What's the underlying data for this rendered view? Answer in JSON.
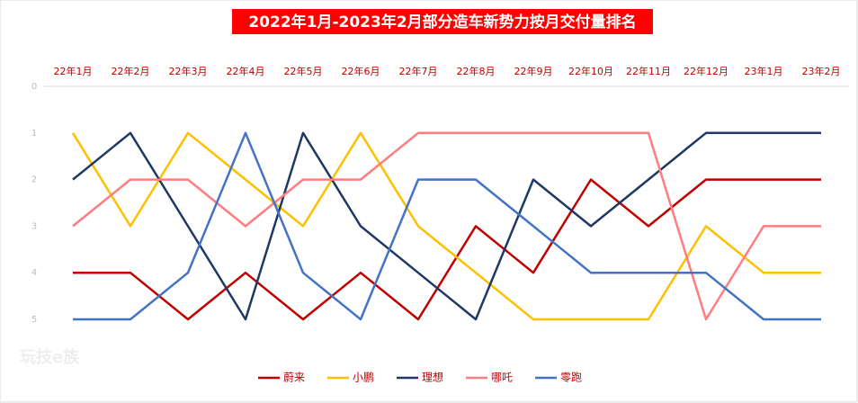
{
  "chart_data": {
    "type": "line",
    "title": "2022年1月-2023年2月部分造车新势力按月交付量排名",
    "watermark": "玩技e族",
    "categories": [
      "22年1月",
      "22年2月",
      "22年3月",
      "22年4月",
      "22年5月",
      "22年6月",
      "22年7月",
      "22年8月",
      "22年9月",
      "22年10月",
      "22年11月",
      "22年12月",
      "23年1月",
      "23年2月"
    ],
    "ylim": [
      0,
      5
    ],
    "yticks": [
      0,
      1,
      2,
      3,
      4,
      5
    ],
    "invert_y": true,
    "series": [
      {
        "name": "蔚来",
        "color": "#c00000",
        "values": [
          4,
          4,
          5,
          4,
          5,
          4,
          5,
          3,
          4,
          2,
          3,
          2,
          2,
          2
        ]
      },
      {
        "name": "小鹏",
        "color": "#ffc000",
        "values": [
          1,
          3,
          1,
          2,
          3,
          1,
          3,
          4,
          5,
          5,
          5,
          3,
          4,
          4
        ]
      },
      {
        "name": "理想",
        "color": "#1f3864",
        "values": [
          2,
          1,
          3,
          5,
          1,
          3,
          4,
          5,
          2,
          3,
          2,
          1,
          1,
          1
        ]
      },
      {
        "name": "哪吒",
        "color": "#ff7c80",
        "values": [
          3,
          2,
          2,
          3,
          2,
          2,
          1,
          1,
          1,
          1,
          1,
          5,
          3,
          3
        ]
      },
      {
        "name": "零跑",
        "color": "#4472c4",
        "values": [
          5,
          5,
          4,
          1,
          4,
          5,
          2,
          2,
          3,
          4,
          4,
          4,
          5,
          5
        ]
      }
    ]
  }
}
